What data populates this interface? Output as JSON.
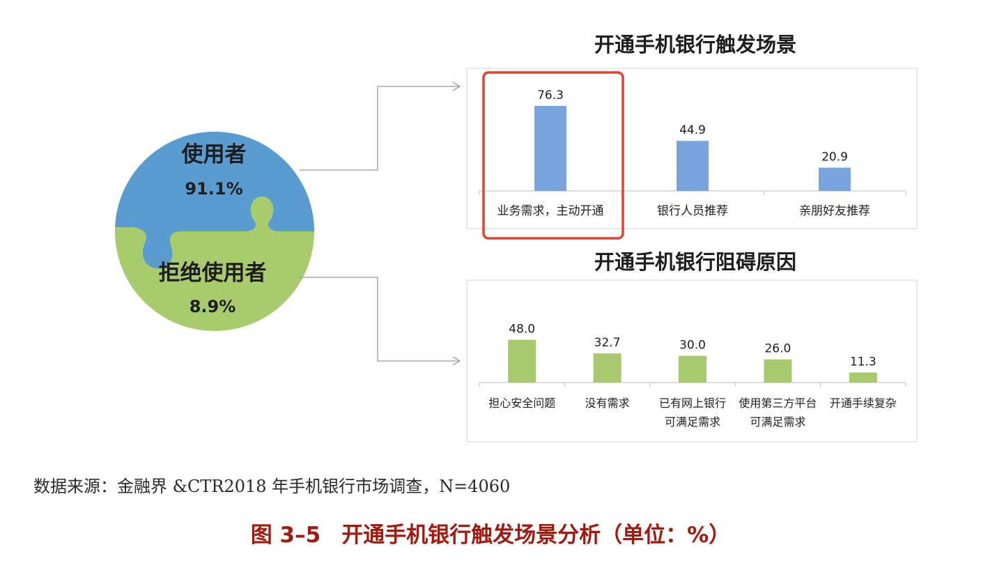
{
  "pie": {
    "users_label": "使用者",
    "users_value": "91.1%",
    "refusers_label": "拒绝使用者",
    "refusers_value": "8.9%",
    "users_color": "#5a9bd0",
    "refusers_color": "#a8cb6e"
  },
  "chart_data": [
    {
      "type": "bar",
      "title": "开通手机银行触发场景",
      "categories": [
        [
          "业务需求，主动开通"
        ],
        [
          "银行人员推荐"
        ],
        [
          "亲朋好友推荐"
        ]
      ],
      "values": [
        76.3,
        44.9,
        20.9
      ],
      "value_labels": [
        "76.3",
        "44.9",
        "20.9"
      ],
      "color": "#7aa5dc",
      "highlight_index": 0,
      "highlight_color": "#e8402e"
    },
    {
      "type": "bar",
      "title": "开通手机银行阻碍原因",
      "categories": [
        [
          "担心安全问题"
        ],
        [
          "没有需求"
        ],
        [
          "已有网上银行",
          "可满足需求"
        ],
        [
          "使用第三方平台",
          "可满足需求"
        ],
        [
          "开通手续复杂"
        ]
      ],
      "values": [
        48.0,
        32.7,
        30.0,
        26.0,
        11.3
      ],
      "value_labels": [
        "48.0",
        "32.7",
        "30.0",
        "26.0",
        "11.3"
      ],
      "color": "#a8c96e"
    }
  ],
  "source_note": "数据来源：金融界 &CTR2018 年手机银行市场调查，N=4060",
  "caption": {
    "number": "图 3–5",
    "text": "开通手机银行触发场景分析（单位：%）"
  }
}
